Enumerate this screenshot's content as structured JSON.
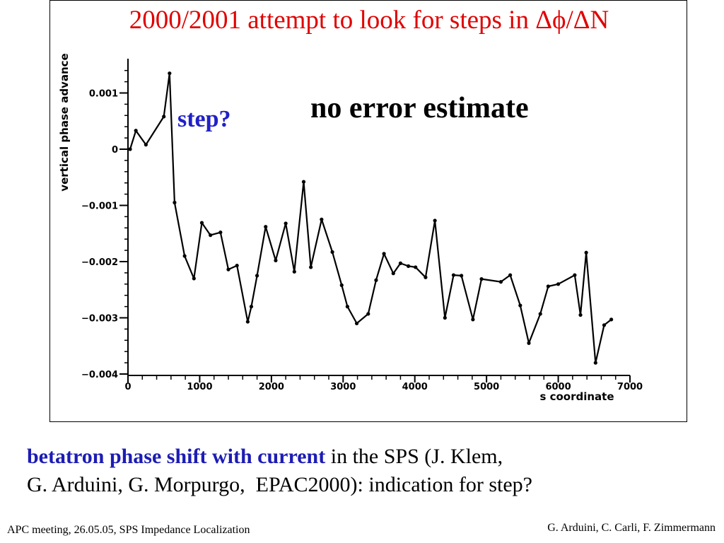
{
  "chart_data": {
    "type": "line",
    "title": "2000/2001 attempt to look for steps in Δϕ/ΔN",
    "xlabel": "s coordinate",
    "ylabel": "vertical phase advance",
    "xlim": [
      0,
      7000
    ],
    "ylim": [
      -0.004,
      0.0016
    ],
    "x_ticks": [
      0,
      1000,
      2000,
      3000,
      4000,
      5000,
      6000,
      7000
    ],
    "x_tick_labels": [
      "0",
      "1000",
      "2000",
      "3000",
      "4000",
      "5000",
      "6000",
      "7000"
    ],
    "y_ticks": [
      0.001,
      0,
      -0.001,
      -0.002,
      -0.003,
      -0.004
    ],
    "y_tick_labels": [
      "0.001",
      "0",
      "−0.001",
      "−0.002",
      "−0.003",
      "−0.004"
    ],
    "grid": false,
    "series": [
      {
        "points": [
          [
            30,
            0.0
          ],
          [
            110,
            0.00033
          ],
          [
            250,
            8e-05
          ],
          [
            500,
            0.00058
          ],
          [
            580,
            0.00135
          ],
          [
            650,
            -0.00095
          ],
          [
            790,
            -0.0019
          ],
          [
            920,
            -0.0023
          ],
          [
            1030,
            -0.00131
          ],
          [
            1150,
            -0.00153
          ],
          [
            1290,
            -0.00148
          ],
          [
            1400,
            -0.00214
          ],
          [
            1520,
            -0.00207
          ],
          [
            1670,
            -0.00307
          ],
          [
            1720,
            -0.0028
          ],
          [
            1800,
            -0.00225
          ],
          [
            1920,
            -0.00138
          ],
          [
            2060,
            -0.00198
          ],
          [
            2200,
            -0.00132
          ],
          [
            2320,
            -0.00218
          ],
          [
            2450,
            -0.00058
          ],
          [
            2550,
            -0.0021
          ],
          [
            2700,
            -0.00125
          ],
          [
            2850,
            -0.00183
          ],
          [
            2980,
            -0.00242
          ],
          [
            3060,
            -0.0028
          ],
          [
            3190,
            -0.0031
          ],
          [
            3350,
            -0.00293
          ],
          [
            3460,
            -0.00233
          ],
          [
            3570,
            -0.00186
          ],
          [
            3700,
            -0.00221
          ],
          [
            3800,
            -0.00203
          ],
          [
            3910,
            -0.00208
          ],
          [
            4010,
            -0.0021
          ],
          [
            4150,
            -0.00228
          ],
          [
            4280,
            -0.00127
          ],
          [
            4420,
            -0.003
          ],
          [
            4540,
            -0.00224
          ],
          [
            4650,
            -0.00225
          ],
          [
            4810,
            -0.00303
          ],
          [
            4930,
            -0.00231
          ],
          [
            5200,
            -0.00236
          ],
          [
            5330,
            -0.00224
          ],
          [
            5470,
            -0.00278
          ],
          [
            5590,
            -0.00345
          ],
          [
            5750,
            -0.00293
          ],
          [
            5860,
            -0.00244
          ],
          [
            6000,
            -0.0024
          ],
          [
            6230,
            -0.00224
          ],
          [
            6310,
            -0.00295
          ],
          [
            6390,
            -0.00184
          ],
          [
            6520,
            -0.0038
          ],
          [
            6640,
            -0.00313
          ],
          [
            6740,
            -0.00303
          ]
        ]
      }
    ]
  },
  "annotations": {
    "no_error": "no error estimate",
    "step": "step?"
  },
  "caption": {
    "highlight": "betatron phase shift with current",
    "line1_rest": " in the SPS (J. Klem,",
    "line2": "G. Arduini, G. Morpurgo,  EPAC2000): indication for step?"
  },
  "footer": {
    "left": "APC meeting, 26.05.05, SPS Impedance Localization",
    "right": "G. Arduini, C. Carli, F. Zimmermann"
  },
  "colors": {
    "title": "#e00000",
    "step_annotation": "#2020c8",
    "caption_highlight": "#1c1cb4",
    "line": "#000000"
  }
}
